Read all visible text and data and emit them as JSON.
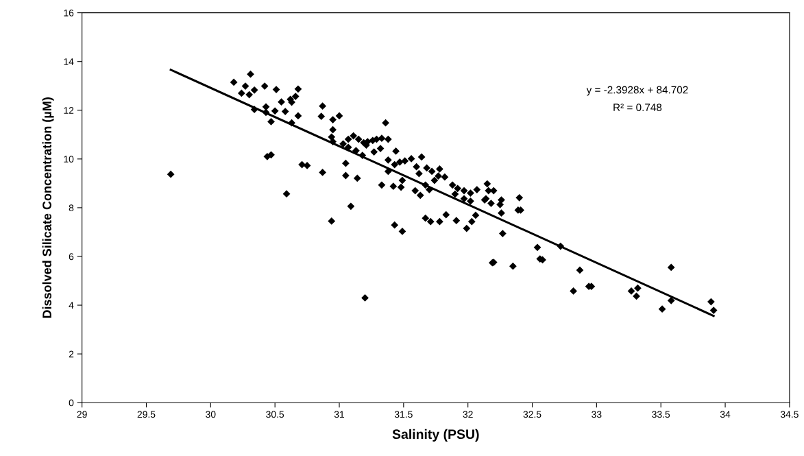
{
  "chart_data": {
    "type": "scatter",
    "xlabel": "Salinity (PSU)",
    "ylabel": "Dissolved Silicate Concentration (µM)",
    "xlim": [
      29,
      34.5
    ],
    "xticks": [
      29,
      29.5,
      30,
      30.5,
      31,
      31.5,
      32,
      32.5,
      33,
      33.5,
      34,
      34.5
    ],
    "ylim": [
      0,
      16
    ],
    "yticks": [
      0,
      2,
      4,
      6,
      8,
      10,
      12,
      14,
      16
    ],
    "grid": false,
    "legend": false,
    "annotations": [
      "y = -2.3928x + 84.702",
      "R² = 0.748"
    ],
    "series": [
      {
        "color": "#000000",
        "marker": "diamond",
        "x": [
          29.69,
          30.18,
          30.31,
          30.27,
          30.34,
          30.42,
          30.24,
          30.3,
          30.51,
          30.68,
          30.66,
          30.62,
          30.63,
          30.55,
          30.43,
          30.34,
          30.43,
          30.5,
          30.58,
          30.68,
          30.47,
          30.63,
          30.44,
          30.47,
          30.71,
          30.75,
          30.59,
          30.87,
          30.86,
          30.95,
          31.0,
          31.36,
          30.95,
          30.94,
          30.95,
          31.03,
          31.07,
          31.11,
          31.15,
          31.19,
          31.22,
          31.26,
          31.29,
          31.33,
          31.38,
          31.07,
          31.13,
          31.21,
          31.27,
          31.32,
          31.18,
          30.87,
          31.05,
          31.05,
          31.14,
          31.33,
          31.09,
          30.94,
          31.2,
          31.44,
          31.38,
          31.43,
          31.47,
          31.51,
          31.56,
          31.38,
          31.64,
          31.6,
          31.62,
          31.42,
          31.49,
          31.48,
          31.68,
          31.72,
          31.78,
          31.77,
          31.82,
          31.74,
          31.67,
          31.59,
          31.63,
          31.7,
          31.88,
          31.92,
          31.97,
          32.02,
          32.07,
          32.15,
          32.16,
          31.9,
          32.02,
          31.97,
          32.13,
          31.67,
          31.71,
          31.78,
          31.83,
          31.91,
          32.06,
          32.03,
          31.99,
          31.43,
          31.49,
          32.19,
          32.2,
          32.14,
          32.26,
          32.25,
          32.18,
          32.4,
          32.39,
          32.41,
          32.26,
          32.27,
          32.54,
          32.72,
          32.2,
          32.56,
          32.58,
          32.35,
          32.87,
          32.82,
          32.94,
          32.96,
          33.27,
          33.32,
          33.31,
          33.58,
          33.58,
          33.51,
          33.89,
          33.91
        ],
        "values": [
          9.37,
          13.15,
          13.48,
          12.99,
          12.83,
          12.99,
          12.7,
          12.64,
          12.85,
          12.87,
          12.57,
          12.45,
          12.33,
          12.34,
          12.14,
          12.03,
          11.91,
          11.97,
          11.95,
          11.77,
          11.53,
          11.48,
          10.1,
          10.17,
          9.77,
          9.73,
          8.57,
          12.17,
          11.75,
          11.61,
          11.77,
          11.48,
          11.2,
          10.9,
          10.71,
          10.62,
          10.81,
          10.95,
          10.81,
          10.67,
          10.71,
          10.76,
          10.81,
          10.85,
          10.81,
          10.48,
          10.34,
          10.57,
          10.29,
          10.43,
          10.15,
          9.45,
          9.82,
          9.32,
          9.21,
          8.93,
          8.06,
          7.45,
          4.3,
          10.32,
          9.96,
          9.77,
          9.87,
          9.92,
          10.01,
          9.49,
          10.08,
          9.68,
          9.4,
          8.88,
          9.12,
          8.84,
          9.63,
          9.49,
          9.59,
          9.3,
          9.26,
          9.12,
          8.93,
          8.7,
          8.51,
          8.74,
          8.93,
          8.79,
          8.7,
          8.6,
          8.74,
          8.98,
          8.7,
          8.56,
          8.27,
          8.37,
          8.32,
          7.57,
          7.43,
          7.43,
          7.71,
          7.47,
          7.69,
          7.43,
          7.15,
          7.29,
          7.03,
          5.74,
          8.7,
          8.37,
          8.32,
          8.13,
          8.18,
          8.41,
          7.9,
          7.9,
          7.78,
          6.94,
          6.37,
          6.42,
          5.76,
          5.9,
          5.86,
          5.6,
          5.44,
          4.58,
          4.77,
          4.77,
          4.58,
          4.7,
          4.37,
          5.55,
          4.19,
          3.84,
          4.14,
          3.79
        ]
      },
      {
        "type": "line",
        "color": "#000000",
        "marker": "none",
        "line_style": "solid",
        "x": [
          29.69,
          33.91
        ],
        "values": [
          13.66,
          3.56
        ]
      }
    ]
  }
}
